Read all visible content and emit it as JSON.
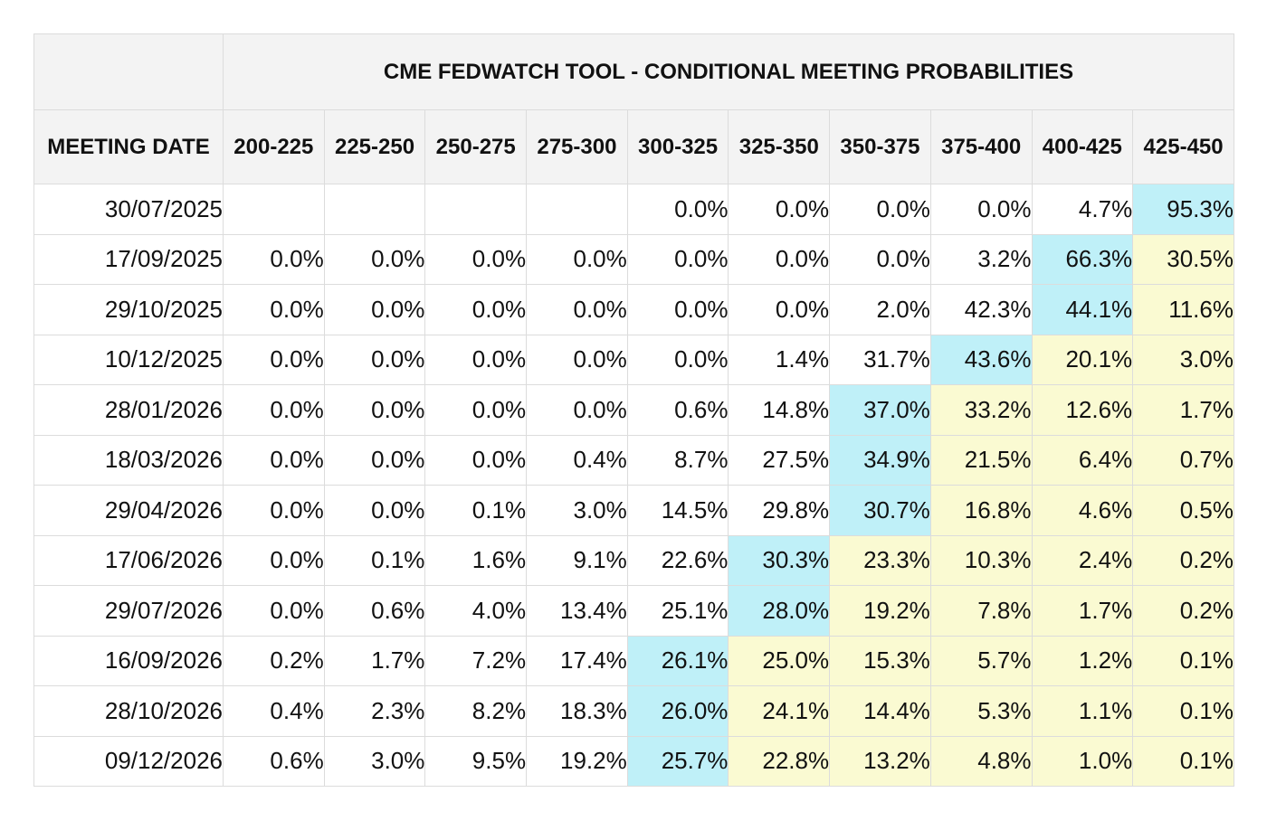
{
  "chart_data": {
    "type": "table",
    "title": "CME FEDWATCH TOOL - CONDITIONAL MEETING PROBABILITIES",
    "row_header": "MEETING DATE",
    "columns": [
      "200-225",
      "225-250",
      "250-275",
      "275-300",
      "300-325",
      "325-350",
      "350-375",
      "375-400",
      "400-425",
      "425-450"
    ],
    "rows": [
      {
        "date": "30/07/2025",
        "values": [
          "",
          "",
          "",
          "",
          "0.0%",
          "0.0%",
          "0.0%",
          "0.0%",
          "4.7%",
          "95.3%"
        ]
      },
      {
        "date": "17/09/2025",
        "values": [
          "0.0%",
          "0.0%",
          "0.0%",
          "0.0%",
          "0.0%",
          "0.0%",
          "0.0%",
          "3.2%",
          "66.3%",
          "30.5%"
        ]
      },
      {
        "date": "29/10/2025",
        "values": [
          "0.0%",
          "0.0%",
          "0.0%",
          "0.0%",
          "0.0%",
          "0.0%",
          "2.0%",
          "42.3%",
          "44.1%",
          "11.6%"
        ]
      },
      {
        "date": "10/12/2025",
        "values": [
          "0.0%",
          "0.0%",
          "0.0%",
          "0.0%",
          "0.0%",
          "1.4%",
          "31.7%",
          "43.6%",
          "20.1%",
          "3.0%"
        ]
      },
      {
        "date": "28/01/2026",
        "values": [
          "0.0%",
          "0.0%",
          "0.0%",
          "0.0%",
          "0.6%",
          "14.8%",
          "37.0%",
          "33.2%",
          "12.6%",
          "1.7%"
        ]
      },
      {
        "date": "18/03/2026",
        "values": [
          "0.0%",
          "0.0%",
          "0.0%",
          "0.4%",
          "8.7%",
          "27.5%",
          "34.9%",
          "21.5%",
          "6.4%",
          "0.7%"
        ]
      },
      {
        "date": "29/04/2026",
        "values": [
          "0.0%",
          "0.0%",
          "0.1%",
          "3.0%",
          "14.5%",
          "29.8%",
          "30.7%",
          "16.8%",
          "4.6%",
          "0.5%"
        ]
      },
      {
        "date": "17/06/2026",
        "values": [
          "0.0%",
          "0.1%",
          "1.6%",
          "9.1%",
          "22.6%",
          "30.3%",
          "23.3%",
          "10.3%",
          "2.4%",
          "0.2%"
        ]
      },
      {
        "date": "29/07/2026",
        "values": [
          "0.0%",
          "0.6%",
          "4.0%",
          "13.4%",
          "25.1%",
          "28.0%",
          "19.2%",
          "7.8%",
          "1.7%",
          "0.2%"
        ]
      },
      {
        "date": "16/09/2026",
        "values": [
          "0.2%",
          "1.7%",
          "7.2%",
          "17.4%",
          "26.1%",
          "25.0%",
          "15.3%",
          "5.7%",
          "1.2%",
          "0.1%"
        ]
      },
      {
        "date": "28/10/2026",
        "values": [
          "0.4%",
          "2.3%",
          "8.2%",
          "18.3%",
          "26.0%",
          "24.1%",
          "14.4%",
          "5.3%",
          "1.1%",
          "0.1%"
        ]
      },
      {
        "date": "09/12/2026",
        "values": [
          "0.6%",
          "3.0%",
          "9.5%",
          "19.2%",
          "25.7%",
          "22.8%",
          "13.2%",
          "4.8%",
          "1.0%",
          "0.1%"
        ]
      }
    ],
    "colors": {
      "header_bg": "#f3f3f3",
      "max_highlight": "#bff0f8",
      "above_max_highlight": "#fafad2",
      "border": "#dcdcdc"
    }
  }
}
